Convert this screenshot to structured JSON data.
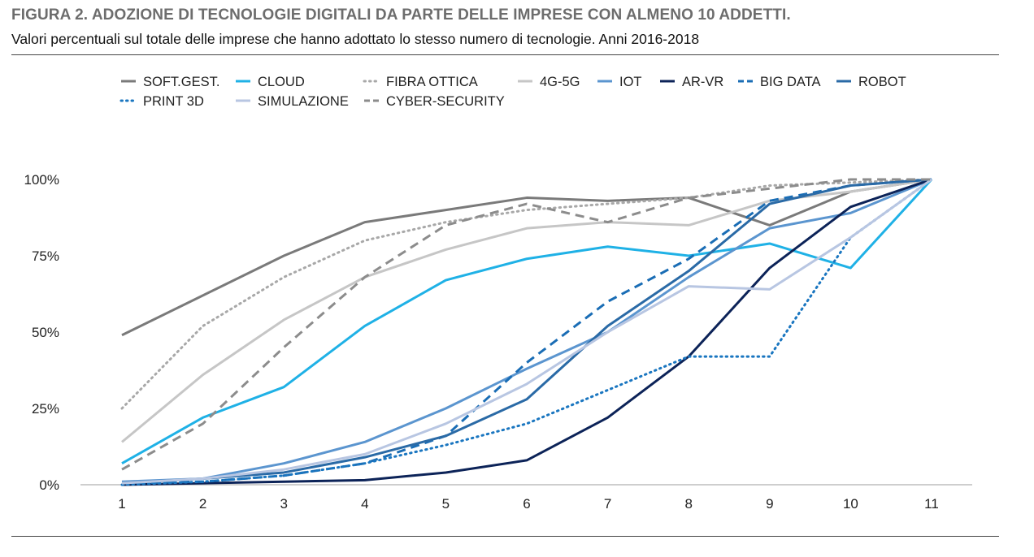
{
  "figure": {
    "title": "FIGURA 2. ADOZIONE DI TECNOLOGIE DIGITALI DA PARTE DELLE IMPRESE CON ALMENO 10 ADDETTI.",
    "subtitle": "Valori percentuali sul totale delle imprese che hanno adottato lo stesso numero di tecnologie. Anni 2016-2018"
  },
  "chart_data": {
    "type": "line",
    "x": [
      1,
      2,
      3,
      4,
      5,
      6,
      7,
      8,
      9,
      10,
      11
    ],
    "xticks": [
      "1",
      "2",
      "3",
      "4",
      "5",
      "6",
      "7",
      "8",
      "9",
      "10",
      "11"
    ],
    "yticks": [
      "0%",
      "25%",
      "50%",
      "75%",
      "100%"
    ],
    "ylim": [
      0,
      100
    ],
    "grid": false,
    "legend_position": "top",
    "series": [
      {
        "name": "SOFT.GEST.",
        "color": "#7a7a7a",
        "dash": "solid",
        "values": [
          49,
          62,
          75,
          86,
          90,
          94,
          93,
          94,
          85,
          96,
          100
        ]
      },
      {
        "name": "CLOUD",
        "color": "#1fb1e6",
        "dash": "solid",
        "values": [
          7,
          22,
          32,
          52,
          67,
          74,
          78,
          75,
          79,
          71,
          100
        ]
      },
      {
        "name": "FIBRA OTTICA",
        "color": "#a8a8a8",
        "dash": "dot",
        "values": [
          25,
          52,
          68,
          80,
          86,
          90,
          92,
          94,
          98,
          99,
          100
        ]
      },
      {
        "name": "4G-5G",
        "color": "#c6c6c6",
        "dash": "solid",
        "values": [
          14,
          36,
          54,
          68,
          77,
          84,
          86,
          85,
          93,
          96,
          100
        ]
      },
      {
        "name": "IOT",
        "color": "#5b95cf",
        "dash": "solid",
        "values": [
          1,
          2,
          7,
          14,
          25,
          38,
          50,
          68,
          84,
          89,
          100
        ]
      },
      {
        "name": "AR-VR",
        "color": "#0c2358",
        "dash": "solid",
        "values": [
          0,
          0.5,
          1,
          1.5,
          4,
          8,
          22,
          42,
          71,
          91,
          100
        ]
      },
      {
        "name": "BIG DATA",
        "color": "#1a6db5",
        "dash": "dash",
        "values": [
          0.5,
          1,
          3,
          7,
          16,
          40,
          60,
          74,
          93,
          98,
          100
        ]
      },
      {
        "name": "ROBOT",
        "color": "#2a6aa6",
        "dash": "solid",
        "values": [
          0.5,
          2,
          4,
          9,
          16,
          28,
          52,
          70,
          92,
          98,
          100
        ]
      },
      {
        "name": "PRINT 3D",
        "color": "#1a76c0",
        "dash": "dot",
        "values": [
          0,
          1,
          3,
          7,
          13,
          20,
          31,
          42,
          42,
          81,
          100
        ]
      },
      {
        "name": "SIMULAZIONE",
        "color": "#b8c6e2",
        "dash": "solid",
        "values": [
          0.5,
          2,
          5,
          10,
          20,
          33,
          50,
          65,
          64,
          81,
          100
        ]
      },
      {
        "name": "CYBER-SECURITY",
        "color": "#8c8c8c",
        "dash": "dash",
        "values": [
          5,
          20,
          45,
          68,
          85,
          92,
          86,
          94,
          97,
          100,
          100
        ]
      }
    ]
  }
}
